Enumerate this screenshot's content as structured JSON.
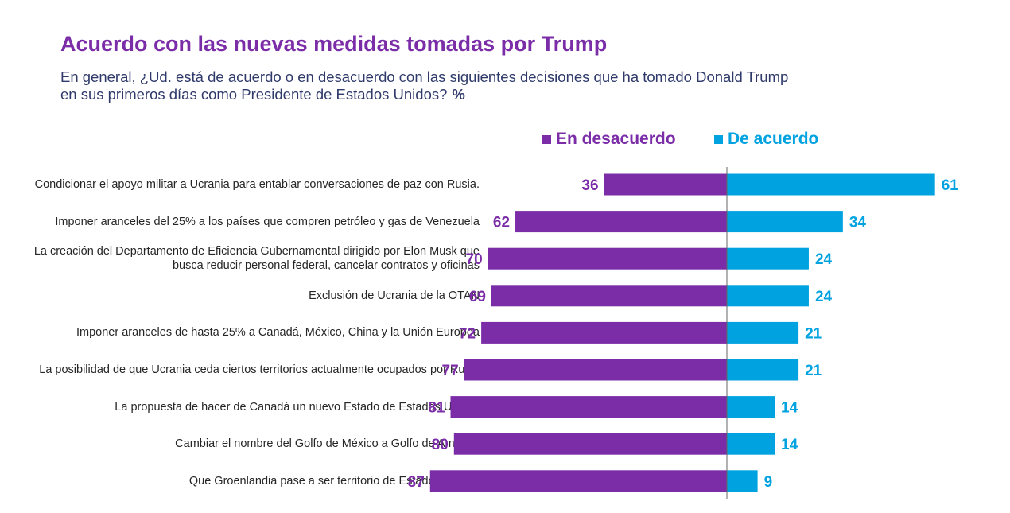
{
  "title": "Acuerdo con las nuevas medidas tomadas por Trump",
  "subtitle": "En general, ¿Ud. está de acuerdo o en desacuerdo con las siguientes decisiones que ha tomado Donald Trump en sus primeros días como Presidente de Estados Unidos?",
  "unit": "%",
  "colors": {
    "disagree": "#7B2DA8",
    "agree": "#00A3E0",
    "title": "#7B2DA8",
    "subtitle": "#2F3A6B",
    "axis": "#666666"
  },
  "chart_data": {
    "type": "bar",
    "orientation": "horizontal-diverging",
    "legend_position": "top",
    "grid": false,
    "categories": [
      "Condicionar el apoyo militar a Ucrania para entablar conversaciones de paz con Rusia.",
      "Imponer aranceles del 25% a los países que compren petróleo y gas de Venezuela",
      "La creación del Departamento de Eficiencia Gubernamental dirigido por Elon Musk que busca reducir personal federal, cancelar contratos y oficinas",
      "Exclusión de Ucrania de la OTAN",
      "Imponer aranceles de hasta 25% a Canadá, México, China y la Unión Europea",
      "La posibilidad de que Ucrania ceda ciertos territorios actualmente ocupados por Rusia",
      "La propuesta de hacer de Canadá un nuevo Estado de Estados Unidos",
      "Cambiar el nombre del Golfo de México a Golfo de América",
      "Que Groenlandia pase a ser territorio de Estados Unidos"
    ],
    "series": [
      {
        "name": "En desacuerdo",
        "values": [
          36,
          62,
          70,
          69,
          72,
          77,
          81,
          80,
          87
        ]
      },
      {
        "name": "De acuerdo",
        "values": [
          61,
          34,
          24,
          24,
          21,
          21,
          14,
          14,
          9
        ]
      }
    ]
  }
}
